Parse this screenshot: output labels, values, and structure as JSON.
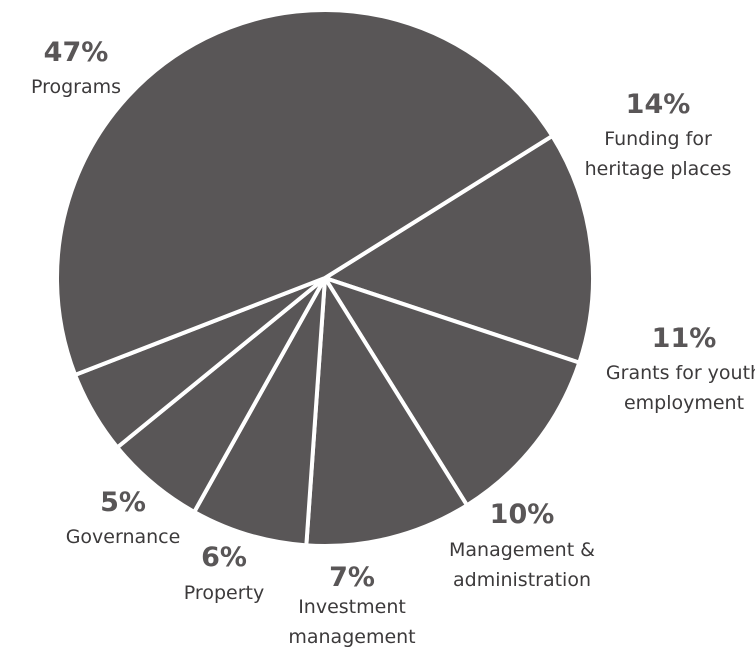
{
  "chart_data": {
    "type": "pie",
    "title": "",
    "slice_color": "#595657",
    "separator_color": "#ffffff",
    "background": "#ffffff",
    "slices": [
      {
        "label": "Funding for heritage places",
        "label_lines": [
          "Funding for",
          "heritage places"
        ],
        "percent_text": "14%",
        "value": 14
      },
      {
        "label": "Grants for youth employment",
        "label_lines": [
          "Grants for youth",
          "employment"
        ],
        "percent_text": "11%",
        "value": 11
      },
      {
        "label": "Management & administration",
        "label_lines": [
          "Management &",
          "administration"
        ],
        "percent_text": "10%",
        "value": 10
      },
      {
        "label": "Investment management",
        "label_lines": [
          "Investment",
          "management"
        ],
        "percent_text": "7%",
        "value": 7
      },
      {
        "label": "Property",
        "label_lines": [
          "Property"
        ],
        "percent_text": "6%",
        "value": 6
      },
      {
        "label": "Governance",
        "label_lines": [
          "Governance"
        ],
        "percent_text": "5%",
        "value": 5
      },
      {
        "label": "Programs",
        "label_lines": [
          "Programs"
        ],
        "percent_text": "47%",
        "value": 47
      }
    ]
  }
}
